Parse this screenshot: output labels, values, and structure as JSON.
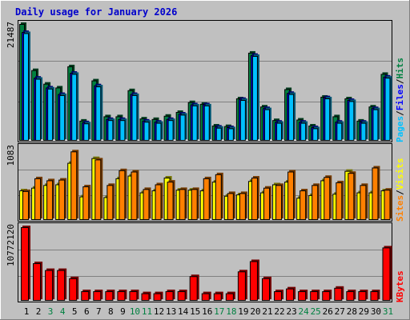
{
  "title": "Daily usage for January 2026",
  "colors": {
    "hits": "#008040",
    "files": "#0000ff",
    "pages": "#00c0ff",
    "visits": "#ffff00",
    "sites": "#ff8000",
    "kbytes": "#ff0000",
    "weekday_label": "#000000",
    "weekend_label": "#008040"
  },
  "chart_data": [
    {
      "type": "bar",
      "panel": "top",
      "max_label": "21487",
      "ylim": [
        0,
        21487
      ],
      "side_labels": [
        "Pages",
        "/",
        "Files",
        "/",
        "Hits"
      ],
      "series": [
        {
          "name": "Hits",
          "values": [
            21487,
            13000,
            10500,
            9800,
            13700,
            3700,
            11100,
            4500,
            4500,
            9300,
            4100,
            4000,
            4600,
            5300,
            7100,
            6800,
            2800,
            2700,
            7800,
            16200,
            6300,
            3800,
            9500,
            3900,
            2800,
            8100,
            4500,
            7800,
            3700,
            6300,
            12300
          ]
        },
        {
          "name": "Files",
          "values": [
            20000,
            11600,
            9800,
            8600,
            12500,
            3400,
            10200,
            4000,
            4000,
            8600,
            3700,
            3500,
            4000,
            5000,
            6700,
            6700,
            2600,
            2500,
            7700,
            15800,
            6000,
            3500,
            8800,
            3500,
            2500,
            8000,
            3500,
            7500,
            3500,
            6000,
            11800
          ]
        },
        {
          "name": "Pages",
          "values": [
            19800,
            11400,
            9600,
            8400,
            12300,
            3200,
            10000,
            3800,
            3800,
            8400,
            3500,
            3300,
            3800,
            4800,
            6500,
            6500,
            2400,
            2300,
            7500,
            15600,
            5800,
            3300,
            8600,
            3300,
            2300,
            7800,
            3300,
            7300,
            3300,
            5800,
            11600
          ]
        }
      ]
    },
    {
      "type": "bar",
      "panel": "middle",
      "max_label": "1083",
      "ylim": [
        0,
        1083
      ],
      "side_labels": [
        "Sites",
        "/",
        "Visits"
      ],
      "series": [
        {
          "name": "Visits",
          "values": [
            440,
            480,
            520,
            530,
            850,
            350,
            920,
            340,
            620,
            660,
            410,
            440,
            630,
            450,
            450,
            440,
            570,
            360,
            380,
            580,
            410,
            530,
            570,
            330,
            370,
            590,
            390,
            730,
            410,
            410,
            440
          ]
        },
        {
          "name": "Sites",
          "values": [
            430,
            620,
            590,
            600,
            1020,
            500,
            900,
            520,
            740,
            720,
            460,
            530,
            570,
            460,
            460,
            620,
            680,
            400,
            400,
            630,
            480,
            520,
            720,
            440,
            520,
            640,
            560,
            700,
            520,
            780,
            450
          ]
        }
      ]
    },
    {
      "type": "bar",
      "panel": "bottom",
      "max_label": "10772120",
      "ylim": [
        0,
        10772120
      ],
      "side_labels": [
        "KBytes"
      ],
      "series": [
        {
          "name": "KBytes",
          "values": [
            10772120,
            5500000,
            4500000,
            4500000,
            3300000,
            1400000,
            1400000,
            1400000,
            1400000,
            1400000,
            1100000,
            1100000,
            1400000,
            1400000,
            3600000,
            1100000,
            1100000,
            1100000,
            4300000,
            5800000,
            3300000,
            1400000,
            1800000,
            1400000,
            1400000,
            1400000,
            1900000,
            1400000,
            1400000,
            1400000,
            7800000
          ]
        }
      ]
    }
  ],
  "days": [
    "1",
    "2",
    "3",
    "4",
    "5",
    "6",
    "7",
    "8",
    "9",
    "10",
    "11",
    "12",
    "13",
    "14",
    "15",
    "16",
    "17",
    "18",
    "19",
    "20",
    "21",
    "22",
    "23",
    "24",
    "25",
    "26",
    "27",
    "28",
    "29",
    "30",
    "31"
  ],
  "weekend_days": [
    3,
    4,
    10,
    11,
    17,
    18,
    24,
    25,
    31
  ]
}
